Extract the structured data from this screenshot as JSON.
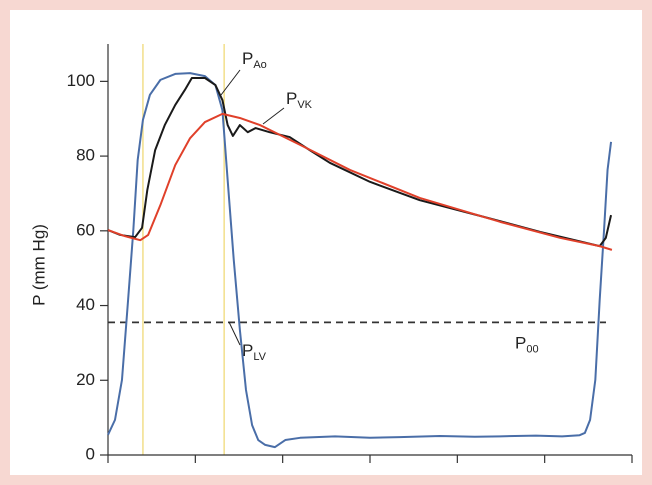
{
  "chart_data": {
    "type": "line",
    "y_label": "P (mm Hg)",
    "ylim": [
      0,
      110
    ],
    "yticks": [
      0,
      20,
      40,
      60,
      80,
      100
    ],
    "xlim": [
      0,
      6
    ],
    "xticks": [
      0,
      1,
      2,
      3,
      4,
      5,
      6
    ],
    "series": [
      {
        "name": "P",
        "subscript": "LV",
        "color": "#4a6ea8",
        "x": [
          0,
          0.08,
          0.16,
          0.23,
          0.29,
          0.34,
          0.4,
          0.48,
          0.6,
          0.77,
          0.94,
          1.11,
          1.23,
          1.31,
          1.37,
          1.44,
          1.51,
          1.58,
          1.65,
          1.72,
          1.8,
          1.91,
          2.03,
          2.2,
          2.6,
          3.0,
          3.34,
          3.8,
          4.2,
          4.49,
          4.9,
          5.2,
          5.4,
          5.46,
          5.52,
          5.58,
          5.63,
          5.68,
          5.72,
          5.76
        ],
        "values": [
          5.4,
          9.4,
          20.1,
          41.5,
          60.2,
          79.0,
          89.7,
          96.4,
          100.4,
          102.0,
          102.2,
          101.4,
          99.0,
          92.3,
          73.6,
          52.2,
          33.5,
          17.4,
          8.0,
          4.0,
          2.7,
          2.1,
          4.0,
          4.6,
          5.0,
          4.6,
          4.8,
          5.1,
          4.9,
          5.0,
          5.2,
          5.0,
          5.3,
          5.9,
          9.4,
          20.1,
          41.5,
          60.2,
          76.3,
          83.8
        ]
      },
      {
        "name": "P",
        "subscript": "Ao",
        "color": "#1a1a1a",
        "x": [
          0,
          0.14,
          0.31,
          0.39,
          0.45,
          0.54,
          0.65,
          0.77,
          0.88,
          0.96,
          1.11,
          1.23,
          1.31,
          1.37,
          1.43,
          1.51,
          1.6,
          1.69,
          1.85,
          2.08,
          2.31,
          2.54,
          3.0,
          3.57,
          4.26,
          4.95,
          5.63,
          5.7,
          5.76
        ],
        "values": [
          60.2,
          58.9,
          58.3,
          60.8,
          70.9,
          81.6,
          88.3,
          93.7,
          97.7,
          100.9,
          100.9,
          99.0,
          95.0,
          88.3,
          85.4,
          88.3,
          86.4,
          87.5,
          86.4,
          85.1,
          81.6,
          78.2,
          73.1,
          68.2,
          64.0,
          59.7,
          55.9,
          58.1,
          64.2
        ]
      },
      {
        "name": "P",
        "subscript": "VK",
        "color": "#e0402a",
        "x": [
          0,
          0.19,
          0.37,
          0.46,
          0.6,
          0.77,
          0.94,
          1.11,
          1.31,
          1.51,
          1.74,
          2.2,
          2.77,
          3.57,
          4.49,
          5.18,
          5.63,
          5.77
        ],
        "values": [
          60.2,
          58.6,
          57.5,
          58.9,
          66.9,
          77.6,
          84.8,
          89.1,
          91.3,
          90.2,
          88.3,
          83.0,
          76.3,
          68.8,
          62.4,
          58.1,
          55.9,
          54.9
        ]
      }
    ],
    "hlines": [
      {
        "value": 35.5,
        "name": "P",
        "subscript": "00",
        "color": "#333333",
        "dash": true
      }
    ],
    "vlines": [
      {
        "value": 0.4,
        "color": "#f2df8a"
      },
      {
        "value": 1.33,
        "color": "#f2df8a"
      }
    ]
  }
}
